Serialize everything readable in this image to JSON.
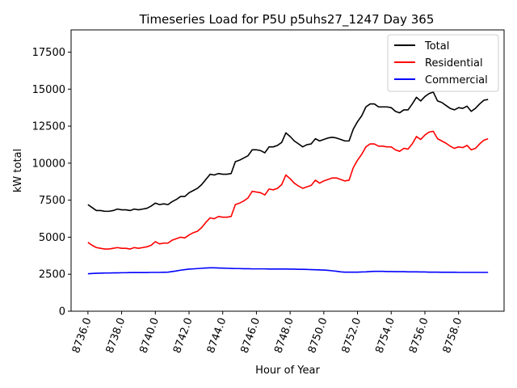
{
  "chart_data": {
    "type": "line",
    "title": "Timeseries Load for P5U p5uhs27_1247  Day 365",
    "xlabel": "Hour of Year",
    "ylabel": "kW total",
    "xlim": [
      8735.0,
      8760.7
    ],
    "ylim": [
      0,
      19000
    ],
    "x_ticks": [
      8736,
      8738,
      8740,
      8742,
      8744,
      8746,
      8748,
      8750,
      8752,
      8754,
      8756,
      8758
    ],
    "x_tick_labels": [
      "8736.0",
      "8738.0",
      "8740.0",
      "8742.0",
      "8744.0",
      "8746.0",
      "8748.0",
      "8750.0",
      "8752.0",
      "8754.0",
      "8756.0",
      "8758.0"
    ],
    "y_ticks": [
      0,
      2500,
      5000,
      7500,
      10000,
      12500,
      15000,
      17500
    ],
    "y_tick_labels": [
      "0",
      "2500",
      "5000",
      "7500",
      "10000",
      "12500",
      "15000",
      "17500"
    ],
    "grid": false,
    "legend_position": "top-right",
    "x": [
      8736.0,
      8736.25,
      8736.5,
      8736.75,
      8737.0,
      8737.25,
      8737.5,
      8737.75,
      8738.0,
      8738.25,
      8738.5,
      8738.75,
      8739.0,
      8739.25,
      8739.5,
      8739.75,
      8740.0,
      8740.25,
      8740.5,
      8740.75,
      8741.0,
      8741.25,
      8741.5,
      8741.75,
      8742.0,
      8742.25,
      8742.5,
      8742.75,
      8743.0,
      8743.25,
      8743.5,
      8743.75,
      8744.0,
      8744.25,
      8744.5,
      8744.75,
      8745.0,
      8745.25,
      8745.5,
      8745.75,
      8746.0,
      8746.25,
      8746.5,
      8746.75,
      8747.0,
      8747.25,
      8747.5,
      8747.75,
      8748.0,
      8748.25,
      8748.5,
      8748.75,
      8749.0,
      8749.25,
      8749.5,
      8749.75,
      8750.0,
      8750.25,
      8750.5,
      8750.75,
      8751.0,
      8751.25,
      8751.5,
      8751.75,
      8752.0,
      8752.25,
      8752.5,
      8752.75,
      8753.0,
      8753.25,
      8753.5,
      8753.75,
      8754.0,
      8754.25,
      8754.5,
      8754.75,
      8755.0,
      8755.25,
      8755.5,
      8755.75,
      8756.0,
      8756.25,
      8756.5,
      8756.75,
      8757.0,
      8757.25,
      8757.5,
      8757.75,
      8758.0,
      8758.25,
      8758.5,
      8758.75,
      8759.0,
      8759.25,
      8759.5,
      8759.75
    ],
    "series": [
      {
        "name": "Total",
        "color": "#000000",
        "values": [
          7200,
          7000,
          6800,
          6800,
          6750,
          6750,
          6800,
          6900,
          6850,
          6850,
          6800,
          6900,
          6850,
          6900,
          6950,
          7100,
          7300,
          7200,
          7250,
          7200,
          7400,
          7550,
          7750,
          7750,
          8000,
          8150,
          8300,
          8550,
          8900,
          9250,
          9200,
          9300,
          9250,
          9250,
          9300,
          10100,
          10200,
          10350,
          10500,
          10900,
          10900,
          10850,
          10700,
          11100,
          11100,
          11200,
          11400,
          12050,
          11800,
          11500,
          11300,
          11100,
          11250,
          11300,
          11650,
          11500,
          11600,
          11700,
          11750,
          11700,
          11600,
          11500,
          11500,
          12300,
          12800,
          13200,
          13800,
          14000,
          14000,
          13800,
          13800,
          13800,
          13750,
          13500,
          13400,
          13600,
          13600,
          14000,
          14450,
          14200,
          14500,
          14700,
          14800,
          14200,
          14100,
          13900,
          13700,
          13600,
          13750,
          13700,
          13850,
          13500,
          13700,
          14000,
          14250,
          14300
        ]
      },
      {
        "name": "Residential",
        "color": "#ff0000",
        "values": [
          4650,
          4450,
          4300,
          4250,
          4200,
          4200,
          4250,
          4300,
          4250,
          4250,
          4200,
          4300,
          4250,
          4300,
          4350,
          4450,
          4700,
          4550,
          4600,
          4600,
          4800,
          4900,
          5000,
          4950,
          5150,
          5300,
          5400,
          5650,
          6000,
          6300,
          6250,
          6400,
          6350,
          6350,
          6400,
          7200,
          7300,
          7450,
          7650,
          8100,
          8050,
          8000,
          7850,
          8250,
          8200,
          8300,
          8550,
          9200,
          8950,
          8650,
          8450,
          8300,
          8400,
          8500,
          8850,
          8650,
          8800,
          8900,
          9000,
          9000,
          8900,
          8800,
          8850,
          9700,
          10200,
          10600,
          11100,
          11300,
          11300,
          11150,
          11150,
          11100,
          11100,
          10900,
          10800,
          11000,
          10950,
          11300,
          11800,
          11600,
          11900,
          12100,
          12150,
          11650,
          11500,
          11350,
          11150,
          11000,
          11100,
          11050,
          11200,
          10900,
          11000,
          11300,
          11550,
          11650
        ]
      },
      {
        "name": "Commercial",
        "color": "#0000ff",
        "values": [
          2530,
          2550,
          2560,
          2570,
          2580,
          2580,
          2590,
          2590,
          2600,
          2600,
          2610,
          2610,
          2610,
          2610,
          2610,
          2620,
          2620,
          2620,
          2630,
          2640,
          2680,
          2720,
          2770,
          2810,
          2840,
          2860,
          2880,
          2900,
          2920,
          2930,
          2930,
          2920,
          2910,
          2900,
          2890,
          2880,
          2880,
          2870,
          2870,
          2860,
          2860,
          2860,
          2860,
          2850,
          2850,
          2850,
          2850,
          2850,
          2840,
          2840,
          2830,
          2830,
          2820,
          2810,
          2800,
          2790,
          2780,
          2760,
          2730,
          2700,
          2660,
          2640,
          2640,
          2640,
          2640,
          2650,
          2660,
          2680,
          2690,
          2690,
          2690,
          2680,
          2680,
          2670,
          2670,
          2670,
          2660,
          2660,
          2660,
          2650,
          2650,
          2640,
          2640,
          2640,
          2630,
          2630,
          2630,
          2630,
          2620,
          2620,
          2620,
          2620,
          2620,
          2620,
          2620,
          2620
        ]
      }
    ]
  }
}
